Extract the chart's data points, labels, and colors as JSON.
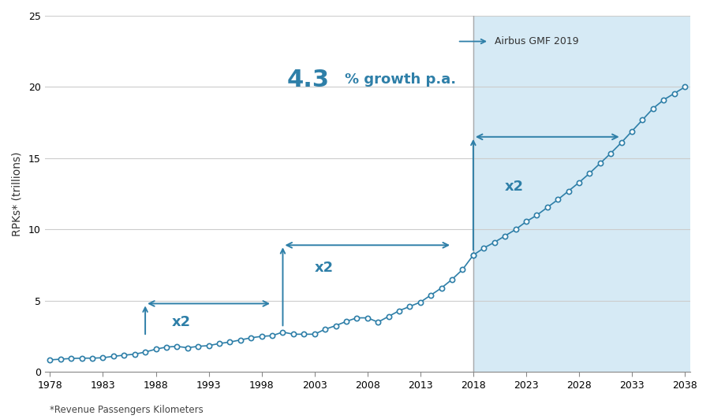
{
  "title_ylabel": "RPKs* (trillions)",
  "footnote": "*Revenue Passengers Kilometers",
  "annotation_growth": "4.3",
  "annotation_growth_suffix": "% growth p.a.",
  "annotation_airbus": "Airbus GMF 2019",
  "x_start": 1978,
  "x_end": 2038,
  "x_split": 2018,
  "ylim": [
    0,
    25
  ],
  "yticks": [
    0,
    5,
    10,
    15,
    20,
    25
  ],
  "xticks": [
    1978,
    1983,
    1988,
    1993,
    1998,
    2003,
    2008,
    2013,
    2018,
    2023,
    2028,
    2033,
    2038
  ],
  "background_future": "#d6eaf5",
  "line_color": "#2e7fa8",
  "marker_color": "#2e7fa8",
  "historical_data": {
    "years": [
      1978,
      1979,
      1980,
      1981,
      1982,
      1983,
      1984,
      1985,
      1986,
      1987,
      1988,
      1989,
      1990,
      1991,
      1992,
      1993,
      1994,
      1995,
      1996,
      1997,
      1998,
      1999,
      2000,
      2001,
      2002,
      2003,
      2004,
      2005,
      2006,
      2007,
      2008,
      2009,
      2010,
      2011,
      2012,
      2013,
      2014,
      2015,
      2016,
      2017,
      2018
    ],
    "values": [
      0.85,
      0.9,
      0.95,
      0.97,
      0.97,
      1.0,
      1.1,
      1.18,
      1.25,
      1.4,
      1.6,
      1.75,
      1.8,
      1.7,
      1.8,
      1.85,
      2.0,
      2.1,
      2.25,
      2.4,
      2.5,
      2.55,
      2.8,
      2.65,
      2.65,
      2.65,
      3.0,
      3.25,
      3.55,
      3.8,
      3.8,
      3.5,
      3.9,
      4.3,
      4.6,
      4.9,
      5.4,
      5.9,
      6.5,
      7.2,
      8.2
    ]
  },
  "forecast_data": {
    "years": [
      2018,
      2019,
      2020,
      2021,
      2022,
      2023,
      2024,
      2025,
      2026,
      2027,
      2028,
      2029,
      2030,
      2031,
      2032,
      2033,
      2034,
      2035,
      2036,
      2037,
      2038
    ],
    "values": [
      8.2,
      8.7,
      9.1,
      9.55,
      10.0,
      10.55,
      11.0,
      11.55,
      12.1,
      12.7,
      13.3,
      13.95,
      14.65,
      15.35,
      16.1,
      16.9,
      17.7,
      18.5,
      19.1,
      19.55,
      20.0
    ]
  },
  "vline_color": "#aaaaaa",
  "fig_bg": "#ffffff"
}
